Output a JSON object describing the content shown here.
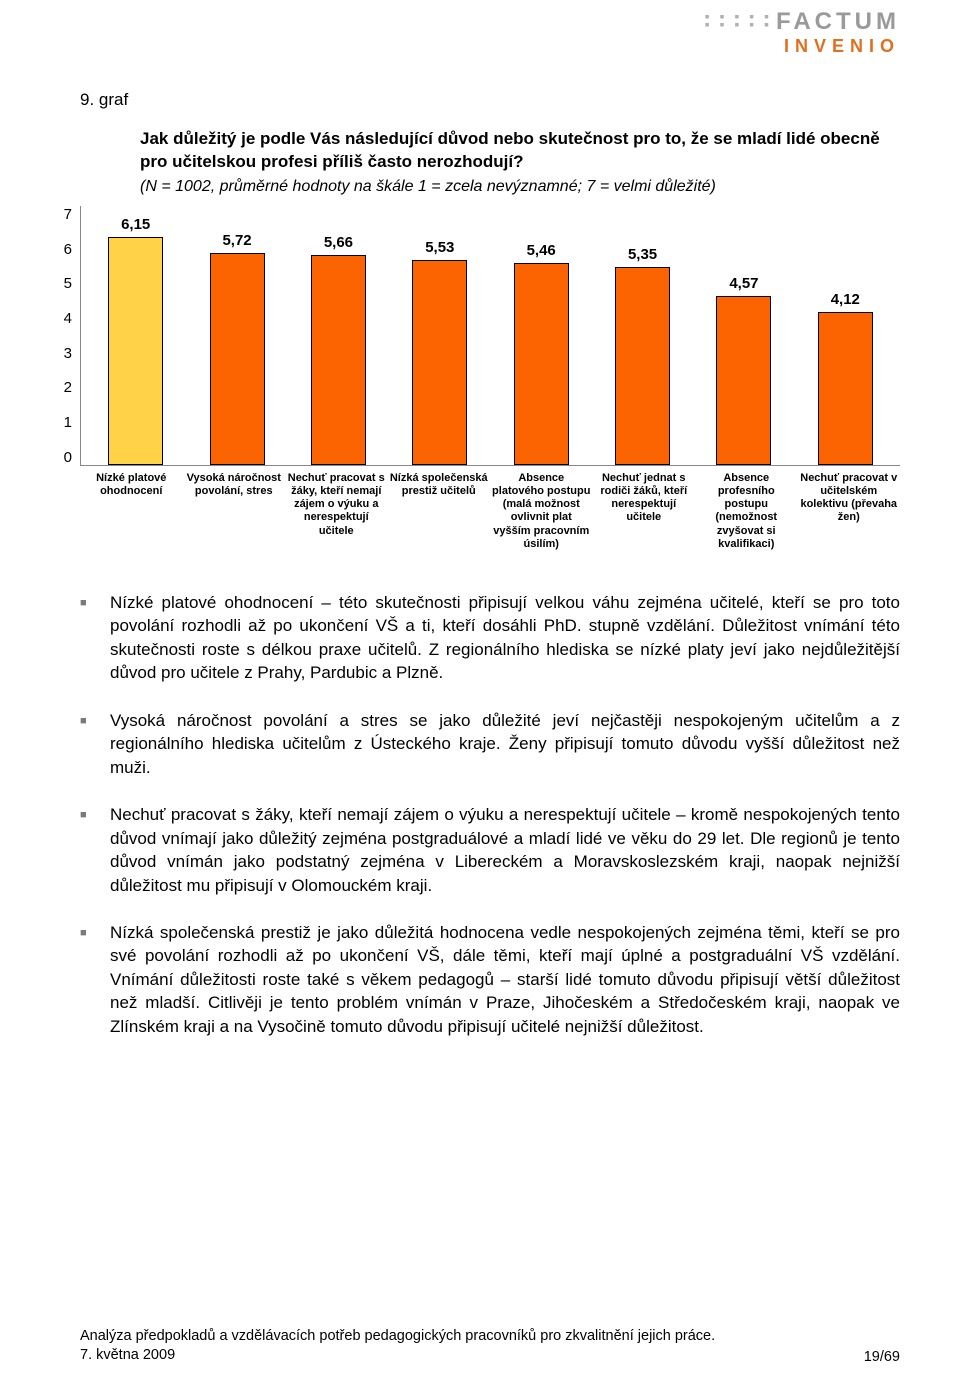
{
  "logo": {
    "top": "FACTUM",
    "bottom": "INVENIO"
  },
  "heading": "9. graf",
  "chart": {
    "type": "bar",
    "title": "Jak důležitý je podle Vás následující důvod nebo skutečnost pro to, že se mladí lidé obecně pro učitelskou profesi příliš často nerozhodují?",
    "subtitle": "(N = 1002, průměrné hodnoty na škále 1 = zcela nevýznamné; 7 = velmi důležité)",
    "ylim": [
      0,
      7
    ],
    "ytick_step": 1,
    "yticks": [
      "0",
      "1",
      "2",
      "3",
      "4",
      "5",
      "6",
      "7"
    ],
    "value_fontsize": 15,
    "label_fontsize": 11,
    "background_color": "#ffffff",
    "bars": [
      {
        "value": 6.15,
        "label": "6,15",
        "color": "#ffd247",
        "xlabel": "Nízké platové ohodnocení"
      },
      {
        "value": 5.72,
        "label": "5,72",
        "color": "#fb6400",
        "xlabel": "Vysoká náročnost povolání, stres"
      },
      {
        "value": 5.66,
        "label": "5,66",
        "color": "#fb6400",
        "xlabel": "Nechuť pracovat s žáky, kteří nemají zájem o výuku a nerespektují učitele"
      },
      {
        "value": 5.53,
        "label": "5,53",
        "color": "#fb6400",
        "xlabel": "Nízká společenská prestiž učitelů"
      },
      {
        "value": 5.46,
        "label": "5,46",
        "color": "#fb6400",
        "xlabel": "Absence platového postupu (malá možnost ovlivnit plat vyšším pracovním úsilím)"
      },
      {
        "value": 5.35,
        "label": "5,35",
        "color": "#fb6400",
        "xlabel": "Nechuť jednat s rodiči žáků, kteří nerespektují učitele"
      },
      {
        "value": 4.57,
        "label": "4,57",
        "color": "#fb6400",
        "xlabel": "Absence profesního postupu (nemožnost zvyšovat si kvalifikaci)"
      },
      {
        "value": 4.12,
        "label": "4,12",
        "color": "#fb6400",
        "xlabel": "Nechuť pracovat v učitelském kolektivu (převaha žen)"
      }
    ]
  },
  "bullets": [
    "Nízké platové ohodnocení – této skutečnosti připisují velkou váhu zejména učitelé, kteří se pro toto povolání rozhodli až po ukončení VŠ a ti, kteří dosáhli PhD. stupně vzdělání. Důležitost vnímání této skutečnosti roste s délkou praxe učitelů. Z regionálního hlediska se nízké platy jeví jako nejdůležitější důvod pro učitele z Prahy, Pardubic a Plzně.",
    "Vysoká náročnost povolání a stres se jako důležité jeví nejčastěji nespokojeným učitelům a z regionálního hlediska učitelům z Ústeckého kraje. Ženy připisují tomuto důvodu vyšší důležitost než muži.",
    "Nechuť pracovat s žáky, kteří nemají zájem o výuku a nerespektují učitele – kromě nespokojených tento důvod vnímají jako důležitý zejména postgraduálové a mladí lidé ve věku do 29 let. Dle regionů je tento důvod vnímán jako podstatný zejména v Libereckém a Moravskoslezském kraji, naopak nejnižší důležitost mu připisují v Olomouckém kraji.",
    "Nízká společenská prestiž je jako důležitá hodnocena vedle nespokojených zejména těmi, kteří se pro své povolání rozhodli až po ukončení VŠ, dále těmi, kteří mají úplné a postgraduální VŠ vzdělání. Vnímání důležitosti roste také s věkem pedagogů – starší lidé tomuto důvodu připisují větší důležitost než mladší. Citlivěji je tento problém vnímán v Praze, Jihočeském a Středočeském kraji, naopak ve Zlínském kraji a na Vysočině tomuto důvodu připisují učitelé nejnižší důležitost."
  ],
  "footer": {
    "line1": "Analýza předpokladů a vzdělávacích potřeb pedagogických pracovníků pro zkvalitnění jejich práce.",
    "line2": "7. května  2009",
    "page": "19/69"
  }
}
